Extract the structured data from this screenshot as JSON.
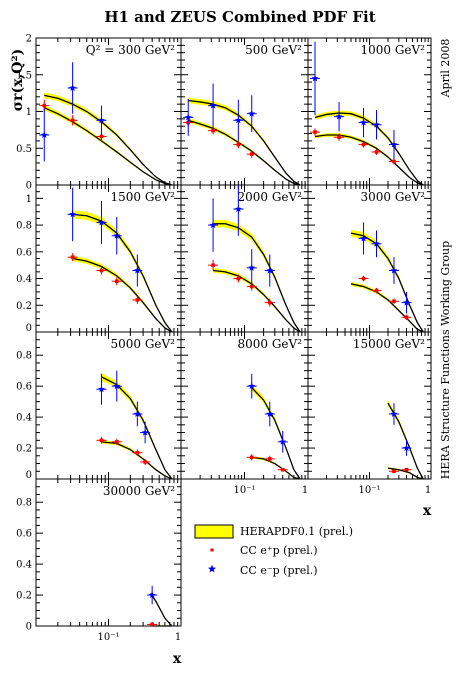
{
  "title": "H1 and ZEUS Combined PDF Fit",
  "side_date": "April 2008",
  "side_group": "HERA Structure Functions Working Group",
  "ylabel": "σr(x,Q²)",
  "xlabel": "x",
  "legend": {
    "band": "HERAPDF0.1 (prel.)",
    "eplus": "CC e⁺p (prel.)",
    "eminus": "CC e⁻p (prel.)"
  },
  "colors": {
    "band": "#ffff00",
    "eplus": "#ff0000",
    "eminus": "#0000ff",
    "line": "#000000"
  },
  "chart_data": {
    "type": "scatter",
    "x_scale": "log",
    "x_ticks": [
      "10⁻¹",
      "1"
    ],
    "panels": [
      {
        "label": "Q² = 300 GeV²",
        "ylim": [
          0,
          2
        ],
        "y_ticks": [
          "0",
          "0.5",
          "1",
          "1.5",
          "2"
        ],
        "eminus_fit": [
          [
            0.013,
            1.22
          ],
          [
            0.02,
            1.18
          ],
          [
            0.032,
            1.1
          ],
          [
            0.05,
            1.0
          ],
          [
            0.08,
            0.86
          ],
          [
            0.13,
            0.68
          ],
          [
            0.2,
            0.48
          ],
          [
            0.3,
            0.28
          ],
          [
            0.45,
            0.11
          ],
          [
            0.6,
            0.03
          ],
          [
            0.75,
            0.0
          ]
        ],
        "eplus_fit": [
          [
            0.013,
            1.05
          ],
          [
            0.02,
            0.97
          ],
          [
            0.032,
            0.86
          ],
          [
            0.05,
            0.74
          ],
          [
            0.08,
            0.6
          ],
          [
            0.13,
            0.45
          ],
          [
            0.2,
            0.31
          ],
          [
            0.3,
            0.18
          ],
          [
            0.45,
            0.07
          ],
          [
            0.6,
            0.02
          ],
          [
            0.75,
            0.0
          ]
        ],
        "eminus": [
          {
            "x": 0.013,
            "y": 0.68,
            "e": 0.36
          },
          {
            "x": 0.032,
            "y": 1.32,
            "e": 0.35
          },
          {
            "x": 0.08,
            "y": 0.88,
            "e": 0.2
          }
        ],
        "eplus": [
          {
            "x": 0.013,
            "y": 1.08,
            "e": 0.08
          },
          {
            "x": 0.032,
            "y": 0.88,
            "e": 0.07
          },
          {
            "x": 0.08,
            "y": 0.66,
            "e": 0.06
          }
        ]
      },
      {
        "label": "500 GeV²",
        "ylim": [
          0,
          2
        ],
        "y_ticks": [],
        "eminus_fit": [
          [
            0.013,
            1.15
          ],
          [
            0.02,
            1.13
          ],
          [
            0.032,
            1.1
          ],
          [
            0.05,
            1.05
          ],
          [
            0.08,
            0.95
          ],
          [
            0.13,
            0.8
          ],
          [
            0.2,
            0.6
          ],
          [
            0.3,
            0.38
          ],
          [
            0.45,
            0.16
          ],
          [
            0.6,
            0.05
          ],
          [
            0.75,
            0.0
          ]
        ],
        "eplus_fit": [
          [
            0.013,
            0.88
          ],
          [
            0.02,
            0.83
          ],
          [
            0.032,
            0.77
          ],
          [
            0.05,
            0.69
          ],
          [
            0.08,
            0.58
          ],
          [
            0.13,
            0.46
          ],
          [
            0.2,
            0.33
          ],
          [
            0.3,
            0.2
          ],
          [
            0.45,
            0.08
          ],
          [
            0.6,
            0.02
          ],
          [
            0.75,
            0.0
          ]
        ],
        "eminus": [
          {
            "x": 0.013,
            "y": 0.92,
            "e": 0.25
          },
          {
            "x": 0.032,
            "y": 1.08,
            "e": 0.3
          },
          {
            "x": 0.08,
            "y": 0.88,
            "e": 0.28
          },
          {
            "x": 0.13,
            "y": 0.97,
            "e": 0.25
          }
        ],
        "eplus": [
          {
            "x": 0.013,
            "y": 0.85,
            "e": 0.06
          },
          {
            "x": 0.032,
            "y": 0.74,
            "e": 0.05
          },
          {
            "x": 0.08,
            "y": 0.55,
            "e": 0.05
          },
          {
            "x": 0.13,
            "y": 0.42,
            "e": 0.05
          }
        ]
      },
      {
        "label": "1000 GeV²",
        "ylim": [
          0,
          2
        ],
        "y_ticks": [],
        "eminus_fit": [
          [
            0.013,
            0.92
          ],
          [
            0.02,
            0.96
          ],
          [
            0.032,
            0.98
          ],
          [
            0.05,
            0.97
          ],
          [
            0.08,
            0.91
          ],
          [
            0.13,
            0.8
          ],
          [
            0.2,
            0.64
          ],
          [
            0.3,
            0.43
          ],
          [
            0.45,
            0.2
          ],
          [
            0.6,
            0.06
          ],
          [
            0.75,
            0.0
          ]
        ],
        "eplus_fit": [
          [
            0.013,
            0.66
          ],
          [
            0.02,
            0.68
          ],
          [
            0.032,
            0.68
          ],
          [
            0.05,
            0.65
          ],
          [
            0.08,
            0.59
          ],
          [
            0.13,
            0.5
          ],
          [
            0.2,
            0.38
          ],
          [
            0.3,
            0.24
          ],
          [
            0.45,
            0.1
          ],
          [
            0.6,
            0.03
          ],
          [
            0.75,
            0.0
          ]
        ],
        "eminus": [
          {
            "x": 0.013,
            "y": 1.45,
            "e": 0.5
          },
          {
            "x": 0.032,
            "y": 0.93,
            "e": 0.2
          },
          {
            "x": 0.08,
            "y": 0.85,
            "e": 0.2
          },
          {
            "x": 0.13,
            "y": 0.82,
            "e": 0.2
          },
          {
            "x": 0.25,
            "y": 0.55,
            "e": 0.2
          }
        ],
        "eplus": [
          {
            "x": 0.013,
            "y": 0.72,
            "e": 0.05
          },
          {
            "x": 0.032,
            "y": 0.65,
            "e": 0.05
          },
          {
            "x": 0.08,
            "y": 0.55,
            "e": 0.04
          },
          {
            "x": 0.13,
            "y": 0.45,
            "e": 0.04
          },
          {
            "x": 0.25,
            "y": 0.32,
            "e": 0.04
          }
        ]
      },
      {
        "label": "1500 GeV²",
        "ylim": [
          0,
          1.1
        ],
        "y_ticks": [
          "0",
          "0.2",
          "0.4",
          "0.6",
          "0.8",
          "1"
        ],
        "eminus_fit": [
          [
            0.032,
            0.88
          ],
          [
            0.05,
            0.87
          ],
          [
            0.08,
            0.83
          ],
          [
            0.13,
            0.74
          ],
          [
            0.2,
            0.6
          ],
          [
            0.3,
            0.42
          ],
          [
            0.45,
            0.2
          ],
          [
            0.6,
            0.07
          ],
          [
            0.75,
            0.0
          ]
        ],
        "eplus_fit": [
          [
            0.032,
            0.55
          ],
          [
            0.05,
            0.53
          ],
          [
            0.08,
            0.49
          ],
          [
            0.13,
            0.42
          ],
          [
            0.2,
            0.33
          ],
          [
            0.3,
            0.22
          ],
          [
            0.45,
            0.1
          ],
          [
            0.6,
            0.03
          ],
          [
            0.75,
            0.0
          ]
        ],
        "eminus": [
          {
            "x": 0.032,
            "y": 0.88,
            "e": 0.2
          },
          {
            "x": 0.08,
            "y": 0.82,
            "e": 0.16
          },
          {
            "x": 0.13,
            "y": 0.72,
            "e": 0.14
          },
          {
            "x": 0.25,
            "y": 0.46,
            "e": 0.12
          }
        ],
        "eplus": [
          {
            "x": 0.032,
            "y": 0.56,
            "e": 0.03
          },
          {
            "x": 0.08,
            "y": 0.46,
            "e": 0.03
          },
          {
            "x": 0.13,
            "y": 0.38,
            "e": 0.03
          },
          {
            "x": 0.25,
            "y": 0.24,
            "e": 0.03
          }
        ]
      },
      {
        "label": "2000 GeV²",
        "ylim": [
          0,
          1.1
        ],
        "y_ticks": [],
        "eminus_fit": [
          [
            0.032,
            0.81
          ],
          [
            0.05,
            0.81
          ],
          [
            0.08,
            0.78
          ],
          [
            0.13,
            0.71
          ],
          [
            0.2,
            0.58
          ],
          [
            0.3,
            0.41
          ],
          [
            0.45,
            0.2
          ],
          [
            0.6,
            0.07
          ],
          [
            0.75,
            0.0
          ]
        ],
        "eplus_fit": [
          [
            0.032,
            0.46
          ],
          [
            0.05,
            0.45
          ],
          [
            0.08,
            0.42
          ],
          [
            0.13,
            0.36
          ],
          [
            0.2,
            0.28
          ],
          [
            0.3,
            0.19
          ],
          [
            0.45,
            0.09
          ],
          [
            0.6,
            0.03
          ],
          [
            0.75,
            0.0
          ]
        ],
        "eminus": [
          {
            "x": 0.032,
            "y": 0.8,
            "e": 0.2
          },
          {
            "x": 0.08,
            "y": 0.92,
            "e": 0.2
          },
          {
            "x": 0.13,
            "y": 0.48,
            "e": 0.14
          },
          {
            "x": 0.25,
            "y": 0.46,
            "e": 0.12
          }
        ],
        "eplus": [
          {
            "x": 0.032,
            "y": 0.5,
            "e": 0.04
          },
          {
            "x": 0.08,
            "y": 0.4,
            "e": 0.03
          },
          {
            "x": 0.13,
            "y": 0.34,
            "e": 0.03
          },
          {
            "x": 0.25,
            "y": 0.22,
            "e": 0.03
          }
        ]
      },
      {
        "label": "3000 GeV²",
        "ylim": [
          0,
          1.1
        ],
        "y_ticks": [],
        "eminus_fit": [
          [
            0.05,
            0.74
          ],
          [
            0.08,
            0.72
          ],
          [
            0.13,
            0.66
          ],
          [
            0.2,
            0.55
          ],
          [
            0.3,
            0.4
          ],
          [
            0.45,
            0.2
          ],
          [
            0.6,
            0.07
          ],
          [
            0.75,
            0.0
          ]
        ],
        "eplus_fit": [
          [
            0.05,
            0.36
          ],
          [
            0.08,
            0.34
          ],
          [
            0.13,
            0.3
          ],
          [
            0.2,
            0.24
          ],
          [
            0.3,
            0.16
          ],
          [
            0.45,
            0.08
          ],
          [
            0.6,
            0.02
          ],
          [
            0.75,
            0.0
          ]
        ],
        "eminus": [
          {
            "x": 0.08,
            "y": 0.7,
            "e": 0.12
          },
          {
            "x": 0.13,
            "y": 0.66,
            "e": 0.1
          },
          {
            "x": 0.25,
            "y": 0.46,
            "e": 0.1
          },
          {
            "x": 0.4,
            "y": 0.22,
            "e": 0.08
          }
        ],
        "eplus": [
          {
            "x": 0.08,
            "y": 0.4,
            "e": 0.02
          },
          {
            "x": 0.13,
            "y": 0.31,
            "e": 0.02
          },
          {
            "x": 0.25,
            "y": 0.23,
            "e": 0.02
          },
          {
            "x": 0.4,
            "y": 0.11,
            "e": 0.02
          }
        ]
      },
      {
        "label": "5000 GeV²",
        "ylim": [
          0,
          0.95
        ],
        "y_ticks": [
          "0",
          "0.2",
          "0.4",
          "0.6",
          "0.8"
        ],
        "eminus_fit": [
          [
            0.08,
            0.66
          ],
          [
            0.13,
            0.61
          ],
          [
            0.2,
            0.52
          ],
          [
            0.3,
            0.38
          ],
          [
            0.45,
            0.19
          ],
          [
            0.6,
            0.06
          ],
          [
            0.75,
            0.0
          ]
        ],
        "eplus_fit": [
          [
            0.08,
            0.24
          ],
          [
            0.13,
            0.23
          ],
          [
            0.2,
            0.19
          ],
          [
            0.3,
            0.13
          ],
          [
            0.45,
            0.06
          ],
          [
            0.6,
            0.02
          ],
          [
            0.75,
            0.0
          ]
        ],
        "eminus": [
          {
            "x": 0.08,
            "y": 0.58,
            "e": 0.1
          },
          {
            "x": 0.13,
            "y": 0.6,
            "e": 0.1
          },
          {
            "x": 0.25,
            "y": 0.42,
            "e": 0.08
          },
          {
            "x": 0.32,
            "y": 0.3,
            "e": 0.07
          }
        ],
        "eplus": [
          {
            "x": 0.08,
            "y": 0.25,
            "e": 0.02
          },
          {
            "x": 0.13,
            "y": 0.24,
            "e": 0.02
          },
          {
            "x": 0.25,
            "y": 0.17,
            "e": 0.02
          },
          {
            "x": 0.32,
            "y": 0.11,
            "e": 0.02
          }
        ]
      },
      {
        "label": "8000 GeV²",
        "ylim": [
          0,
          0.95
        ],
        "y_ticks": [],
        "eminus_fit": [
          [
            0.13,
            0.59
          ],
          [
            0.2,
            0.51
          ],
          [
            0.3,
            0.38
          ],
          [
            0.45,
            0.2
          ],
          [
            0.6,
            0.06
          ],
          [
            0.75,
            0.0
          ]
        ],
        "eplus_fit": [
          [
            0.13,
            0.14
          ],
          [
            0.2,
            0.13
          ],
          [
            0.3,
            0.1
          ],
          [
            0.45,
            0.05
          ],
          [
            0.6,
            0.01
          ],
          [
            0.75,
            0.0
          ]
        ],
        "eminus": [
          {
            "x": 0.13,
            "y": 0.6,
            "e": 0.08
          },
          {
            "x": 0.25,
            "y": 0.42,
            "e": 0.08
          },
          {
            "x": 0.4,
            "y": 0.24,
            "e": 0.07
          }
        ],
        "eplus": [
          {
            "x": 0.13,
            "y": 0.14,
            "e": 0.02
          },
          {
            "x": 0.25,
            "y": 0.13,
            "e": 0.02
          },
          {
            "x": 0.4,
            "y": 0.06,
            "e": 0.01
          }
        ]
      },
      {
        "label": "15000 GeV²",
        "ylim": [
          0,
          0.95
        ],
        "y_ticks": [],
        "eminus_fit": [
          [
            0.2,
            0.49
          ],
          [
            0.3,
            0.37
          ],
          [
            0.45,
            0.2
          ],
          [
            0.6,
            0.07
          ],
          [
            0.75,
            0.0
          ]
        ],
        "eplus_fit": [
          [
            0.2,
            0.07
          ],
          [
            0.3,
            0.06
          ],
          [
            0.45,
            0.04
          ],
          [
            0.6,
            0.01
          ],
          [
            0.75,
            0.0
          ]
        ],
        "eminus": [
          {
            "x": 0.25,
            "y": 0.42,
            "e": 0.07
          },
          {
            "x": 0.4,
            "y": 0.2,
            "e": 0.05
          }
        ],
        "eplus": [
          {
            "x": 0.25,
            "y": 0.05,
            "e": 0.01
          },
          {
            "x": 0.4,
            "y": 0.06,
            "e": 0.01
          }
        ]
      },
      {
        "label": "30000 GeV²",
        "ylim": [
          0,
          0.95
        ],
        "y_ticks": [
          "0",
          "0.2",
          "0.4",
          "0.6",
          "0.8"
        ],
        "eminus_fit": [
          [
            0.38,
            0.21
          ],
          [
            0.45,
            0.16
          ],
          [
            0.6,
            0.05
          ],
          [
            0.75,
            0.0
          ]
        ],
        "eplus_fit": [
          [
            0.38,
            0.0
          ],
          [
            0.6,
            0.0
          ],
          [
            0.75,
            0.0
          ]
        ],
        "eminus": [
          {
            "x": 0.4,
            "y": 0.2,
            "e": 0.06
          }
        ],
        "eplus": [
          {
            "x": 0.4,
            "y": 0.01,
            "e": 0.005
          }
        ]
      }
    ]
  }
}
